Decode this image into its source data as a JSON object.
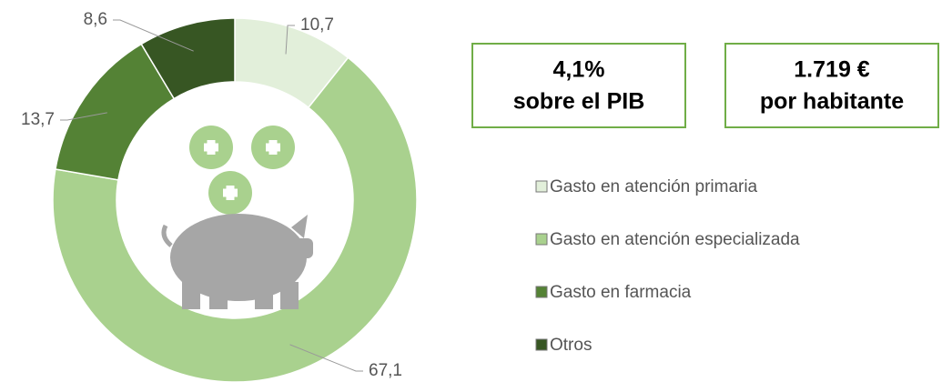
{
  "chart_data": {
    "type": "donut",
    "categories": [
      "Gasto en atención primaria",
      "Gasto en atención especializada",
      "Gasto en farmacia",
      "Otros"
    ],
    "values": [
      10.7,
      67.1,
      13.7,
      8.6
    ],
    "value_labels": [
      "10,7",
      "67,1",
      "13,7",
      "8,6"
    ],
    "colors": [
      "#e2efda",
      "#a9d18e",
      "#548235",
      "#375623"
    ],
    "legend": "right"
  },
  "highlights": [
    {
      "text": "4,1%",
      "caption": "sobre el PIB"
    },
    {
      "text": "1.719 €",
      "caption": "por habitante"
    }
  ]
}
